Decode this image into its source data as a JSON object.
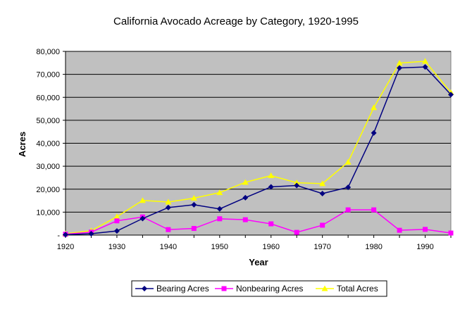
{
  "chart_data": {
    "type": "line",
    "title": "California Avocado Acreage by Category, 1920-1995",
    "xlabel": "Year",
    "ylabel": "Acres",
    "x": [
      1920,
      1925,
      1930,
      1935,
      1940,
      1945,
      1950,
      1955,
      1960,
      1965,
      1970,
      1975,
      1980,
      1985,
      1990,
      1995
    ],
    "xlim": [
      1920,
      1995
    ],
    "ylim": [
      0,
      80000
    ],
    "x_ticks": [
      "1920",
      "1930",
      "1940",
      "1950",
      "1960",
      "1970",
      "1980",
      "1990"
    ],
    "y_ticks": [
      "-",
      "10,000",
      "20,000",
      "30,000",
      "40,000",
      "50,000",
      "60,000",
      "70,000",
      "80,000"
    ],
    "grid": true,
    "legend_position": "bottom",
    "plot_background": "#c0c0c0",
    "series": [
      {
        "name": "Bearing Acres",
        "color": "#000080",
        "marker": "diamond",
        "values": [
          200,
          600,
          1800,
          7200,
          12000,
          13200,
          11400,
          16300,
          21000,
          21600,
          18100,
          20800,
          44500,
          72800,
          73200,
          61200
        ]
      },
      {
        "name": "Nonbearing Acres",
        "color": "#ff00ff",
        "marker": "square",
        "values": [
          400,
          1300,
          6200,
          7900,
          2400,
          2900,
          7100,
          6700,
          4900,
          1200,
          4300,
          11000,
          11000,
          2100,
          2500,
          900
        ]
      },
      {
        "name": "Total Acres",
        "color": "#ffff00",
        "marker": "triangle",
        "values": [
          600,
          1900,
          8000,
          15100,
          14400,
          16100,
          18500,
          23000,
          25900,
          22800,
          22400,
          31800,
          55500,
          74900,
          75700,
          62100
        ]
      }
    ]
  }
}
